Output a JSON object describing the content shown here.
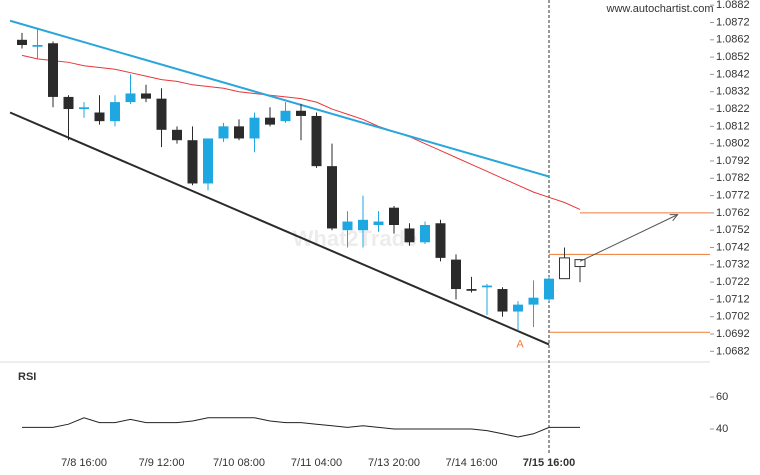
{
  "chart_data": {
    "type": "candlestick",
    "source": "www.autochartist.com",
    "watermark": "What2Trade",
    "pattern_label": "A",
    "categories": [
      null,
      null,
      null,
      null,
      "7/8 16:00",
      null,
      null,
      null,
      null,
      "7/9 12:00",
      null,
      null,
      null,
      null,
      "7/10 08:00",
      null,
      null,
      null,
      null,
      "7/11 04:00",
      null,
      null,
      null,
      null,
      "7/13 20:00",
      null,
      null,
      null,
      null,
      "7/14 16:00",
      null,
      null,
      null,
      null,
      "7/15 16:00",
      null,
      null
    ],
    "current_index": 34,
    "open": [
      1.0862,
      1.0858,
      1.086,
      1.0829,
      1.0822,
      1.082,
      1.0815,
      1.0826,
      1.0831,
      1.0828,
      1.081,
      1.0804,
      1.0779,
      1.0805,
      1.0812,
      1.0805,
      1.0817,
      1.0815,
      1.0821,
      1.0818,
      1.0789,
      1.0752,
      1.0752,
      1.0755,
      1.0765,
      1.0753,
      1.0745,
      1.0756,
      1.0735,
      1.0718,
      1.0719,
      1.0718,
      1.0705,
      1.0709,
      1.0712,
      1.0724,
      1.0731
    ],
    "high": [
      1.0866,
      1.0868,
      1.0861,
      1.083,
      1.0826,
      1.083,
      1.083,
      1.0842,
      1.0836,
      1.0834,
      1.0812,
      1.0812,
      1.0805,
      1.0814,
      1.0816,
      1.082,
      1.0823,
      1.0826,
      1.0825,
      1.082,
      1.0802,
      1.0763,
      1.0772,
      1.0763,
      1.0766,
      1.0756,
      1.0757,
      1.0758,
      1.0738,
      1.0725,
      1.0721,
      1.0719,
      1.0711,
      1.0723,
      1.0725,
      1.0742,
      1.0735
    ],
    "low": [
      1.0857,
      1.0851,
      1.0823,
      1.0804,
      1.0817,
      1.0813,
      1.0812,
      1.0825,
      1.0826,
      1.08,
      1.0802,
      1.0778,
      1.0775,
      1.0803,
      1.0804,
      1.0797,
      1.0812,
      1.0814,
      1.0804,
      1.0788,
      1.0752,
      1.0742,
      1.0742,
      1.0751,
      1.075,
      1.0743,
      1.0744,
      1.0734,
      1.0712,
      1.0716,
      1.0703,
      1.0702,
      1.0694,
      1.0696,
      1.0711,
      1.0724,
      1.0722
    ],
    "close": [
      1.0859,
      1.0859,
      1.0829,
      1.0822,
      1.0823,
      1.0815,
      1.0826,
      1.0831,
      1.0828,
      1.081,
      1.0804,
      1.0779,
      1.0805,
      1.0812,
      1.0805,
      1.0817,
      1.0813,
      1.0821,
      1.0818,
      1.0789,
      1.0753,
      1.0757,
      1.0758,
      1.0757,
      1.0755,
      1.0745,
      1.0755,
      1.0736,
      1.0718,
      1.0717,
      1.072,
      1.0705,
      1.0709,
      1.0713,
      1.0724,
      1.0736,
      1.0735
    ],
    "up_color": "#1ea7e1",
    "down_color": "#2b2b2b",
    "hollow_candles": [
      35,
      36
    ],
    "moving_average": {
      "color": "#e8373a",
      "values": [
        1.0853,
        1.0851,
        1.085,
        1.0849,
        1.0847,
        1.0846,
        1.0845,
        1.0843,
        1.0841,
        1.0839,
        1.0838,
        1.0836,
        1.0835,
        1.0834,
        1.0832,
        1.0831,
        1.083,
        1.0829,
        1.0828,
        1.0826,
        1.0822,
        1.0819,
        1.0816,
        1.0812,
        1.0809,
        1.0806,
        1.0802,
        1.0798,
        1.0794,
        1.079,
        1.0786,
        1.0782,
        1.0778,
        1.0774,
        1.0771,
        1.0768,
        1.0764
      ]
    },
    "trend_lines": [
      {
        "color": "#2aa6dc",
        "points": [
          [
            -0.77,
            1.0873
          ],
          [
            34,
            1.0783
          ]
        ]
      },
      {
        "color": "#2b2b2b",
        "points": [
          [
            -0.77,
            1.082
          ],
          [
            34,
            1.0686
          ]
        ]
      }
    ],
    "forecast_arrow": {
      "color": "#555555",
      "points": [
        [
          36,
          1.0734
        ],
        [
          42.3,
          1.0761
        ]
      ]
    },
    "levels": [
      {
        "value": 1.0762,
        "from": 36,
        "color": "#f07b35"
      },
      {
        "value": 1.0738,
        "from": 34,
        "color": "#f07b35"
      },
      {
        "value": 1.0693,
        "from": 34,
        "color": "#f07b35"
      }
    ],
    "ylim": [
      1.0677,
      1.0885
    ],
    "yticks": [
      1.0882,
      1.0872,
      1.0862,
      1.0852,
      1.0842,
      1.0832,
      1.0822,
      1.0812,
      1.0802,
      1.0792,
      1.0782,
      1.0772,
      1.0762,
      1.0752,
      1.0742,
      1.0732,
      1.0722,
      1.0712,
      1.0702,
      1.0692,
      1.0682
    ],
    "rsi": {
      "title": "RSI",
      "color": "#222222",
      "values": [
        41,
        41,
        41,
        43,
        47,
        44,
        44,
        46,
        44,
        44,
        44,
        45,
        47,
        47,
        47,
        47,
        45,
        44,
        44,
        43,
        42,
        41,
        42,
        41,
        40,
        40,
        40,
        40,
        40,
        40,
        39,
        37,
        35,
        37,
        41,
        41,
        41
      ],
      "ylim": [
        30,
        80
      ],
      "yticks": [
        60,
        40
      ]
    }
  }
}
